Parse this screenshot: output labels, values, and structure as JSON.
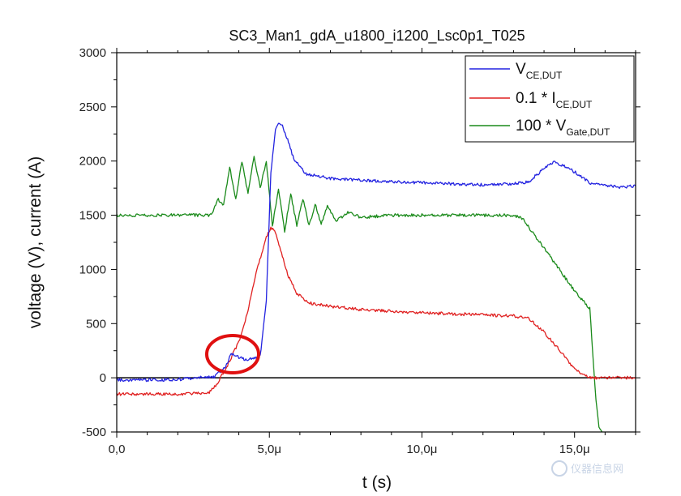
{
  "chart_data": {
    "type": "line",
    "title": "SC3_Man1_gdA_u1800_i1200_Lsc0p1_T025",
    "xlabel": "t (s)",
    "ylabel": "voltage (V), current (A)",
    "xlim": [
      0,
      17
    ],
    "ylim": [
      -500,
      3000
    ],
    "x_ticks": [
      0,
      5,
      10,
      15
    ],
    "x_tick_labels": [
      "0,0",
      "5,0μ",
      "10,0μ",
      "15,0μ"
    ],
    "y_ticks": [
      -500,
      0,
      500,
      1000,
      1500,
      2000,
      2500,
      3000
    ],
    "y_tick_labels": [
      "-500",
      "0",
      "500",
      "1000",
      "1500",
      "2000",
      "2500",
      "3000"
    ],
    "grid": false,
    "zero_line": true,
    "legend_position": "top-right",
    "series": [
      {
        "name": "V",
        "name_sub": "CE,DUT",
        "color": "#2323e0",
        "x": [
          0,
          1,
          2,
          3.2,
          3.6,
          3.75,
          4.0,
          4.2,
          4.5,
          4.7,
          4.9,
          5.05,
          5.2,
          5.3,
          5.4,
          5.6,
          5.8,
          6.2,
          7.0,
          9.0,
          11.0,
          12.0,
          13.0,
          13.5,
          14.0,
          14.3,
          14.6,
          15.0,
          15.5,
          16.0,
          16.5,
          17.0
        ],
        "y": [
          -20,
          -20,
          -15,
          10,
          120,
          230,
          190,
          170,
          180,
          200,
          700,
          1900,
          2280,
          2360,
          2340,
          2200,
          2020,
          1880,
          1840,
          1810,
          1790,
          1780,
          1790,
          1810,
          1930,
          1990,
          1960,
          1900,
          1800,
          1770,
          1760,
          1770
        ]
      },
      {
        "name": "0.1 * I",
        "name_sub": "CE,DUT",
        "color": "#e02020",
        "x": [
          0,
          1,
          2,
          3.0,
          3.3,
          3.6,
          4.0,
          4.3,
          4.6,
          4.9,
          5.05,
          5.2,
          5.4,
          5.6,
          5.9,
          6.3,
          7.0,
          8.0,
          10.0,
          12.0,
          13.0,
          13.5,
          14.0,
          14.5,
          15.0,
          15.3,
          15.6,
          15.9,
          16.5,
          17.0
        ],
        "y": [
          -150,
          -150,
          -150,
          -140,
          -50,
          100,
          330,
          620,
          1000,
          1300,
          1380,
          1350,
          1150,
          950,
          780,
          690,
          660,
          630,
          600,
          580,
          570,
          550,
          420,
          260,
          80,
          20,
          0,
          0,
          0,
          0
        ]
      },
      {
        "name": "100 * V",
        "name_sub": "Gate,DUT",
        "color": "#1a8a1a",
        "x": [
          0,
          1,
          2,
          2.8,
          3.1,
          3.3,
          3.5,
          3.7,
          3.9,
          4.1,
          4.3,
          4.5,
          4.7,
          4.9,
          5.1,
          5.3,
          5.5,
          5.7,
          5.9,
          6.1,
          6.3,
          6.5,
          6.7,
          6.9,
          7.2,
          7.6,
          8.0,
          9.0,
          10.0,
          11.0,
          12.0,
          13.0,
          13.3,
          13.6,
          14.0,
          14.5,
          15.0,
          15.3,
          15.5,
          15.6,
          15.7,
          15.8,
          15.9
        ],
        "y": [
          1500,
          1500,
          1500,
          1500,
          1500,
          1650,
          1600,
          1950,
          1650,
          2000,
          1700,
          2050,
          1750,
          2000,
          1400,
          1750,
          1350,
          1700,
          1400,
          1650,
          1400,
          1600,
          1420,
          1580,
          1450,
          1530,
          1480,
          1500,
          1500,
          1500,
          1500,
          1500,
          1470,
          1350,
          1200,
          1000,
          800,
          700,
          640,
          200,
          -200,
          -450,
          -500
        ]
      }
    ]
  },
  "watermark": "仪器信息网"
}
